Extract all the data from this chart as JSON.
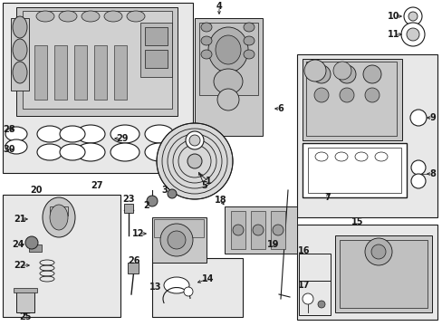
{
  "bg_color": "#ffffff",
  "fig_width": 4.89,
  "fig_height": 3.6,
  "dpi": 100,
  "image_data": ""
}
